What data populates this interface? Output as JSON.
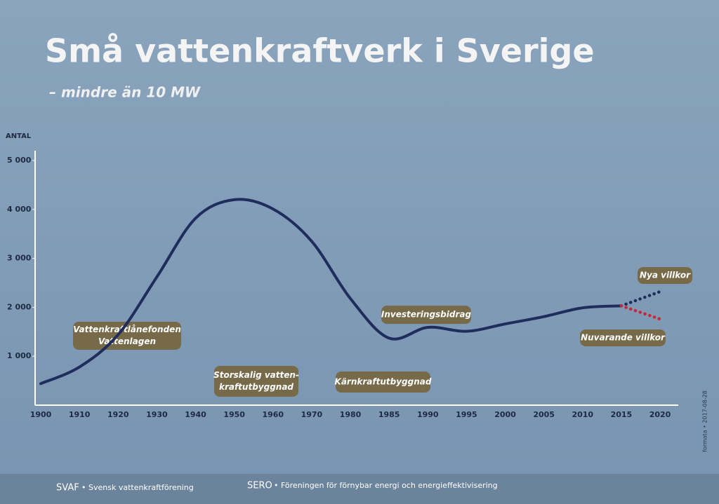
{
  "chart_data": {
    "type": "line",
    "title": "Små vattenkraftverk i Sverige",
    "subtitle": "– mindre än 10 MW",
    "y_label": "ANTAL",
    "categories": [
      "1900",
      "1910",
      "1920",
      "1930",
      "1940",
      "1950",
      "1960",
      "1970",
      "1980",
      "1985",
      "1990",
      "1995",
      "2000",
      "2005",
      "2010",
      "2015",
      "2020"
    ],
    "series": [
      {
        "color": "#1f2d5c",
        "style": "solid",
        "values": [
          440,
          780,
          1440,
          2620,
          3820,
          4200,
          4010,
          3350,
          2180,
          1370,
          1590,
          1510,
          1660,
          1810,
          1990,
          2030,
          null
        ]
      },
      {
        "name": "Nya villkor",
        "color": "#1f2d5c",
        "style": "dotted",
        "values": [
          null,
          null,
          null,
          null,
          null,
          null,
          null,
          null,
          null,
          null,
          null,
          null,
          null,
          null,
          null,
          2030,
          2320
        ]
      },
      {
        "name": "Nuvarande villkor",
        "color": "#c8283a",
        "style": "dotted",
        "values": [
          null,
          null,
          null,
          null,
          null,
          null,
          null,
          null,
          null,
          null,
          null,
          null,
          null,
          null,
          null,
          2030,
          1760
        ]
      }
    ],
    "ylim": [
      0,
      5000
    ],
    "yticks": [
      {
        "value": 1000,
        "label": "1 000"
      },
      {
        "value": 2000,
        "label": "2 000"
      },
      {
        "value": 3000,
        "label": "3 000"
      },
      {
        "value": 4000,
        "label": "4 000"
      },
      {
        "value": 5000,
        "label": "5 000"
      }
    ],
    "annotations": [
      {
        "lines": [
          "Vattenkraftlånefonden",
          "Vattenlagen"
        ]
      },
      {
        "lines": [
          "Storskalig vatten-",
          "kraftutbyggnad"
        ]
      },
      {
        "lines": [
          "Kärnkraftutbyggnad"
        ]
      },
      {
        "lines": [
          "Investeringsbidrag"
        ]
      }
    ],
    "side_note": "formata • 2017-08-28"
  },
  "footer": {
    "left": {
      "name": "SVAF",
      "text": "• Svensk vattenkraftförening"
    },
    "right": {
      "name": "SERO",
      "text": "• Föreningen för förnybar energi och energieffektivisering"
    }
  }
}
